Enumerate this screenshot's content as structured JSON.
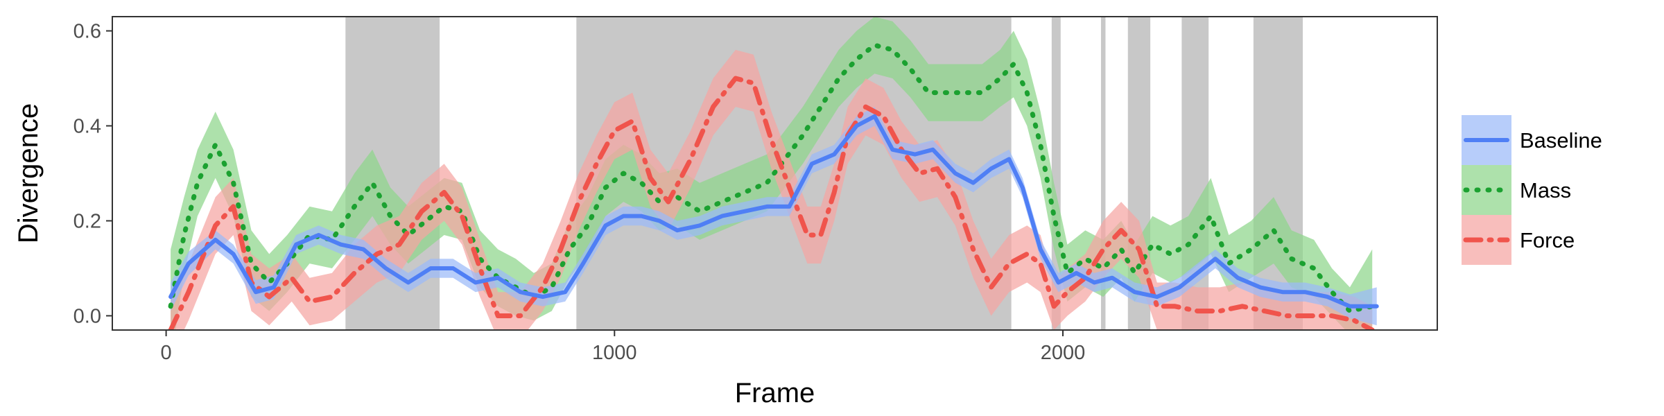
{
  "chart_data": {
    "type": "line",
    "title": "",
    "xlabel": "Frame",
    "ylabel": "Divergence",
    "xlim": [
      -120,
      2835
    ],
    "ylim": [
      -0.03,
      0.63
    ],
    "x_ticks": [
      0,
      1000,
      2000
    ],
    "x_tick_labels": [
      "0",
      "1000",
      "2000"
    ],
    "y_ticks": [
      0,
      0.2,
      0.4,
      0.6
    ],
    "y_tick_labels": [
      "0.0",
      "0.2",
      "0.4",
      "0.6"
    ],
    "grid": false,
    "legend_position": "right",
    "shaded_intervals": [
      [
        400,
        610
      ],
      [
        915,
        1885
      ],
      [
        1975,
        1995
      ],
      [
        2085,
        2095
      ],
      [
        2145,
        2195
      ],
      [
        2265,
        2325
      ],
      [
        2425,
        2535
      ]
    ],
    "shade_color": "#c8c8c8",
    "series": [
      {
        "name": "Baseline",
        "color": "#4f7ff5",
        "band_color": "#9bbaf8",
        "line_style": "solid",
        "x": [
          10,
          50,
          110,
          150,
          200,
          240,
          290,
          340,
          390,
          440,
          490,
          540,
          590,
          640,
          690,
          740,
          790,
          840,
          890,
          930,
          980,
          1020,
          1060,
          1100,
          1140,
          1190,
          1240,
          1290,
          1340,
          1390,
          1440,
          1490,
          1540,
          1580,
          1620,
          1670,
          1710,
          1760,
          1800,
          1840,
          1880,
          1910,
          1950,
          1990,
          2030,
          2070,
          2110,
          2160,
          2210,
          2260,
          2300,
          2340,
          2390,
          2440,
          2490,
          2540,
          2590,
          2640,
          2700
        ],
        "y": [
          0.04,
          0.11,
          0.16,
          0.13,
          0.05,
          0.06,
          0.15,
          0.17,
          0.15,
          0.14,
          0.1,
          0.07,
          0.1,
          0.1,
          0.07,
          0.08,
          0.05,
          0.04,
          0.05,
          0.11,
          0.19,
          0.21,
          0.21,
          0.2,
          0.18,
          0.19,
          0.21,
          0.22,
          0.23,
          0.23,
          0.32,
          0.34,
          0.4,
          0.42,
          0.35,
          0.34,
          0.35,
          0.3,
          0.28,
          0.31,
          0.33,
          0.27,
          0.14,
          0.07,
          0.09,
          0.07,
          0.08,
          0.05,
          0.04,
          0.06,
          0.09,
          0.12,
          0.08,
          0.06,
          0.05,
          0.05,
          0.04,
          0.02,
          0.02
        ],
        "band_width": [
          0.03,
          0.025,
          0.02,
          0.02,
          0.025,
          0.025,
          0.02,
          0.02,
          0.02,
          0.02,
          0.02,
          0.02,
          0.02,
          0.02,
          0.02,
          0.02,
          0.02,
          0.02,
          0.02,
          0.02,
          0.02,
          0.02,
          0.02,
          0.02,
          0.02,
          0.02,
          0.02,
          0.02,
          0.02,
          0.02,
          0.02,
          0.02,
          0.02,
          0.02,
          0.02,
          0.02,
          0.02,
          0.02,
          0.02,
          0.02,
          0.02,
          0.02,
          0.02,
          0.02,
          0.02,
          0.02,
          0.02,
          0.02,
          0.02,
          0.02,
          0.02,
          0.02,
          0.02,
          0.02,
          0.02,
          0.02,
          0.02,
          0.025,
          0.04
        ]
      },
      {
        "name": "Mass",
        "color": "#1ba130",
        "band_color": "#8ed68a",
        "line_style": "dotted",
        "x": [
          10,
          40,
          70,
          110,
          150,
          190,
          230,
          270,
          320,
          370,
          420,
          460,
          500,
          540,
          580,
          620,
          660,
          700,
          740,
          780,
          820,
          860,
          900,
          940,
          980,
          1020,
          1060,
          1100,
          1140,
          1190,
          1240,
          1290,
          1340,
          1380,
          1420,
          1460,
          1500,
          1540,
          1580,
          1620,
          1660,
          1700,
          1740,
          1780,
          1820,
          1860,
          1890,
          1920,
          1950,
          1980,
          2010,
          2050,
          2090,
          2130,
          2160,
          2200,
          2240,
          2280,
          2330,
          2370,
          2420,
          2470,
          2510,
          2560,
          2600,
          2640,
          2690
        ],
        "y": [
          0.02,
          0.17,
          0.28,
          0.36,
          0.28,
          0.11,
          0.07,
          0.11,
          0.17,
          0.16,
          0.23,
          0.28,
          0.21,
          0.17,
          0.2,
          0.23,
          0.22,
          0.12,
          0.08,
          0.06,
          0.04,
          0.06,
          0.14,
          0.19,
          0.27,
          0.3,
          0.28,
          0.24,
          0.25,
          0.22,
          0.24,
          0.26,
          0.28,
          0.33,
          0.38,
          0.44,
          0.5,
          0.54,
          0.57,
          0.56,
          0.52,
          0.47,
          0.47,
          0.47,
          0.47,
          0.5,
          0.53,
          0.47,
          0.36,
          0.21,
          0.09,
          0.12,
          0.1,
          0.14,
          0.09,
          0.15,
          0.13,
          0.15,
          0.21,
          0.11,
          0.14,
          0.18,
          0.12,
          0.1,
          0.05,
          0.01,
          0.02
        ],
        "band_width": [
          0.12,
          0.08,
          0.07,
          0.07,
          0.07,
          0.07,
          0.06,
          0.06,
          0.06,
          0.06,
          0.07,
          0.07,
          0.06,
          0.06,
          0.06,
          0.06,
          0.06,
          0.06,
          0.06,
          0.06,
          0.05,
          0.05,
          0.06,
          0.06,
          0.06,
          0.06,
          0.06,
          0.06,
          0.06,
          0.06,
          0.06,
          0.06,
          0.06,
          0.06,
          0.06,
          0.06,
          0.06,
          0.06,
          0.06,
          0.06,
          0.06,
          0.06,
          0.06,
          0.06,
          0.06,
          0.06,
          0.07,
          0.07,
          0.07,
          0.07,
          0.06,
          0.06,
          0.06,
          0.06,
          0.06,
          0.06,
          0.06,
          0.06,
          0.08,
          0.06,
          0.06,
          0.07,
          0.06,
          0.06,
          0.05,
          0.05,
          0.12
        ]
      },
      {
        "name": "Force",
        "color": "#f0544c",
        "band_color": "#f5a5a2",
        "line_style": "dashdot",
        "x": [
          10,
          50,
          110,
          150,
          190,
          230,
          280,
          320,
          370,
          420,
          470,
          520,
          570,
          620,
          660,
          700,
          740,
          790,
          840,
          880,
          920,
          960,
          1000,
          1040,
          1080,
          1120,
          1170,
          1220,
          1270,
          1310,
          1350,
          1390,
          1430,
          1460,
          1490,
          1520,
          1560,
          1600,
          1640,
          1680,
          1720,
          1760,
          1800,
          1840,
          1880,
          1920,
          1950,
          1980,
          2010,
          2050,
          2090,
          2130,
          2170,
          2210,
          2250,
          2300,
          2350,
          2400,
          2450,
          2500,
          2550,
          2600,
          2650,
          2690
        ],
        "y": [
          -0.03,
          0.05,
          0.19,
          0.23,
          0.07,
          0.04,
          0.08,
          0.03,
          0.04,
          0.09,
          0.13,
          0.15,
          0.22,
          0.26,
          0.21,
          0.1,
          0.0,
          0.0,
          0.06,
          0.14,
          0.24,
          0.32,
          0.39,
          0.41,
          0.29,
          0.24,
          0.33,
          0.44,
          0.5,
          0.49,
          0.37,
          0.27,
          0.17,
          0.17,
          0.26,
          0.38,
          0.44,
          0.42,
          0.35,
          0.3,
          0.31,
          0.25,
          0.14,
          0.06,
          0.11,
          0.13,
          0.11,
          0.02,
          0.05,
          0.08,
          0.14,
          0.18,
          0.14,
          0.02,
          0.02,
          0.01,
          0.01,
          0.02,
          0.01,
          0.0,
          0.0,
          0.0,
          -0.01,
          -0.03
        ],
        "band_width": [
          0.06,
          0.06,
          0.06,
          0.06,
          0.06,
          0.06,
          0.05,
          0.05,
          0.05,
          0.06,
          0.06,
          0.06,
          0.06,
          0.06,
          0.06,
          0.06,
          0.05,
          0.05,
          0.05,
          0.06,
          0.06,
          0.06,
          0.06,
          0.06,
          0.06,
          0.06,
          0.06,
          0.06,
          0.06,
          0.06,
          0.06,
          0.06,
          0.06,
          0.06,
          0.06,
          0.06,
          0.06,
          0.06,
          0.06,
          0.06,
          0.06,
          0.06,
          0.06,
          0.06,
          0.06,
          0.06,
          0.06,
          0.05,
          0.05,
          0.05,
          0.06,
          0.06,
          0.06,
          0.05,
          0.05,
          0.05,
          0.05,
          0.05,
          0.05,
          0.05,
          0.05,
          0.05,
          0.05,
          0.05
        ]
      }
    ]
  }
}
